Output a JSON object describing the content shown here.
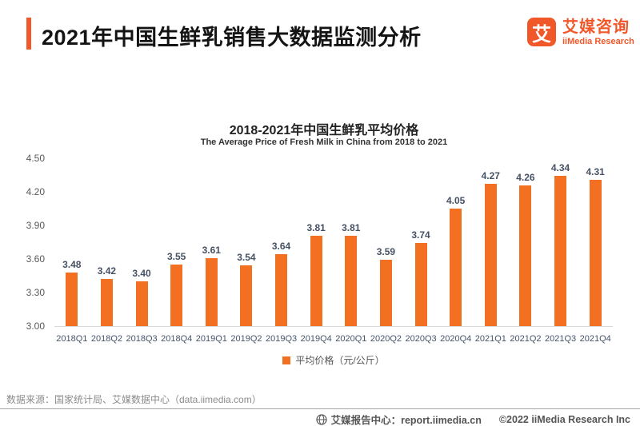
{
  "header": {
    "title": "2021年中国生鲜乳销售大数据监测分析",
    "logo": {
      "glyph": "艾",
      "name_cn": "艾媒咨询",
      "name_en": "iiMedia Research"
    }
  },
  "chart_data": {
    "type": "bar",
    "title": "2018-2021年中国生鲜乳平均价格",
    "subtitle": "The Average Price of Fresh Milk in China from 2018 to 2021",
    "categories": [
      "2018Q1",
      "2018Q2",
      "2018Q3",
      "2018Q4",
      "2019Q1",
      "2019Q2",
      "2019Q3",
      "2019Q4",
      "2020Q1",
      "2020Q2",
      "2020Q3",
      "2020Q4",
      "2021Q1",
      "2021Q2",
      "2021Q3",
      "2021Q4"
    ],
    "values": [
      3.48,
      3.42,
      3.4,
      3.55,
      3.61,
      3.54,
      3.64,
      3.81,
      3.81,
      3.59,
      3.74,
      4.05,
      4.27,
      4.26,
      4.34,
      4.31
    ],
    "series_name": "平均价格（元/公斤）",
    "ylabel": "",
    "xlabel": "",
    "ylim": [
      3.0,
      4.5
    ],
    "yticks": [
      "4.50",
      "4.20",
      "3.90",
      "3.60",
      "3.30",
      "3.00"
    ],
    "grid": false,
    "legend_position": "bottom",
    "bar_color": "#F36F21",
    "value_labels": true
  },
  "legend": {
    "label": "平均价格（元/公斤）"
  },
  "source": "数据来源：国家统计局、艾媒数据中心（data.iimedia.com）",
  "footer": {
    "site_label": "艾媒报告中心：report.iimedia.cn",
    "copyright": "©2022  iiMedia Research  Inc"
  },
  "colors": {
    "bar_orange": "#F36F21",
    "accent_orange": "#F1592B",
    "logo_orange": "#F0582A",
    "axis_text": "#595959",
    "category_text": "#44546A"
  }
}
